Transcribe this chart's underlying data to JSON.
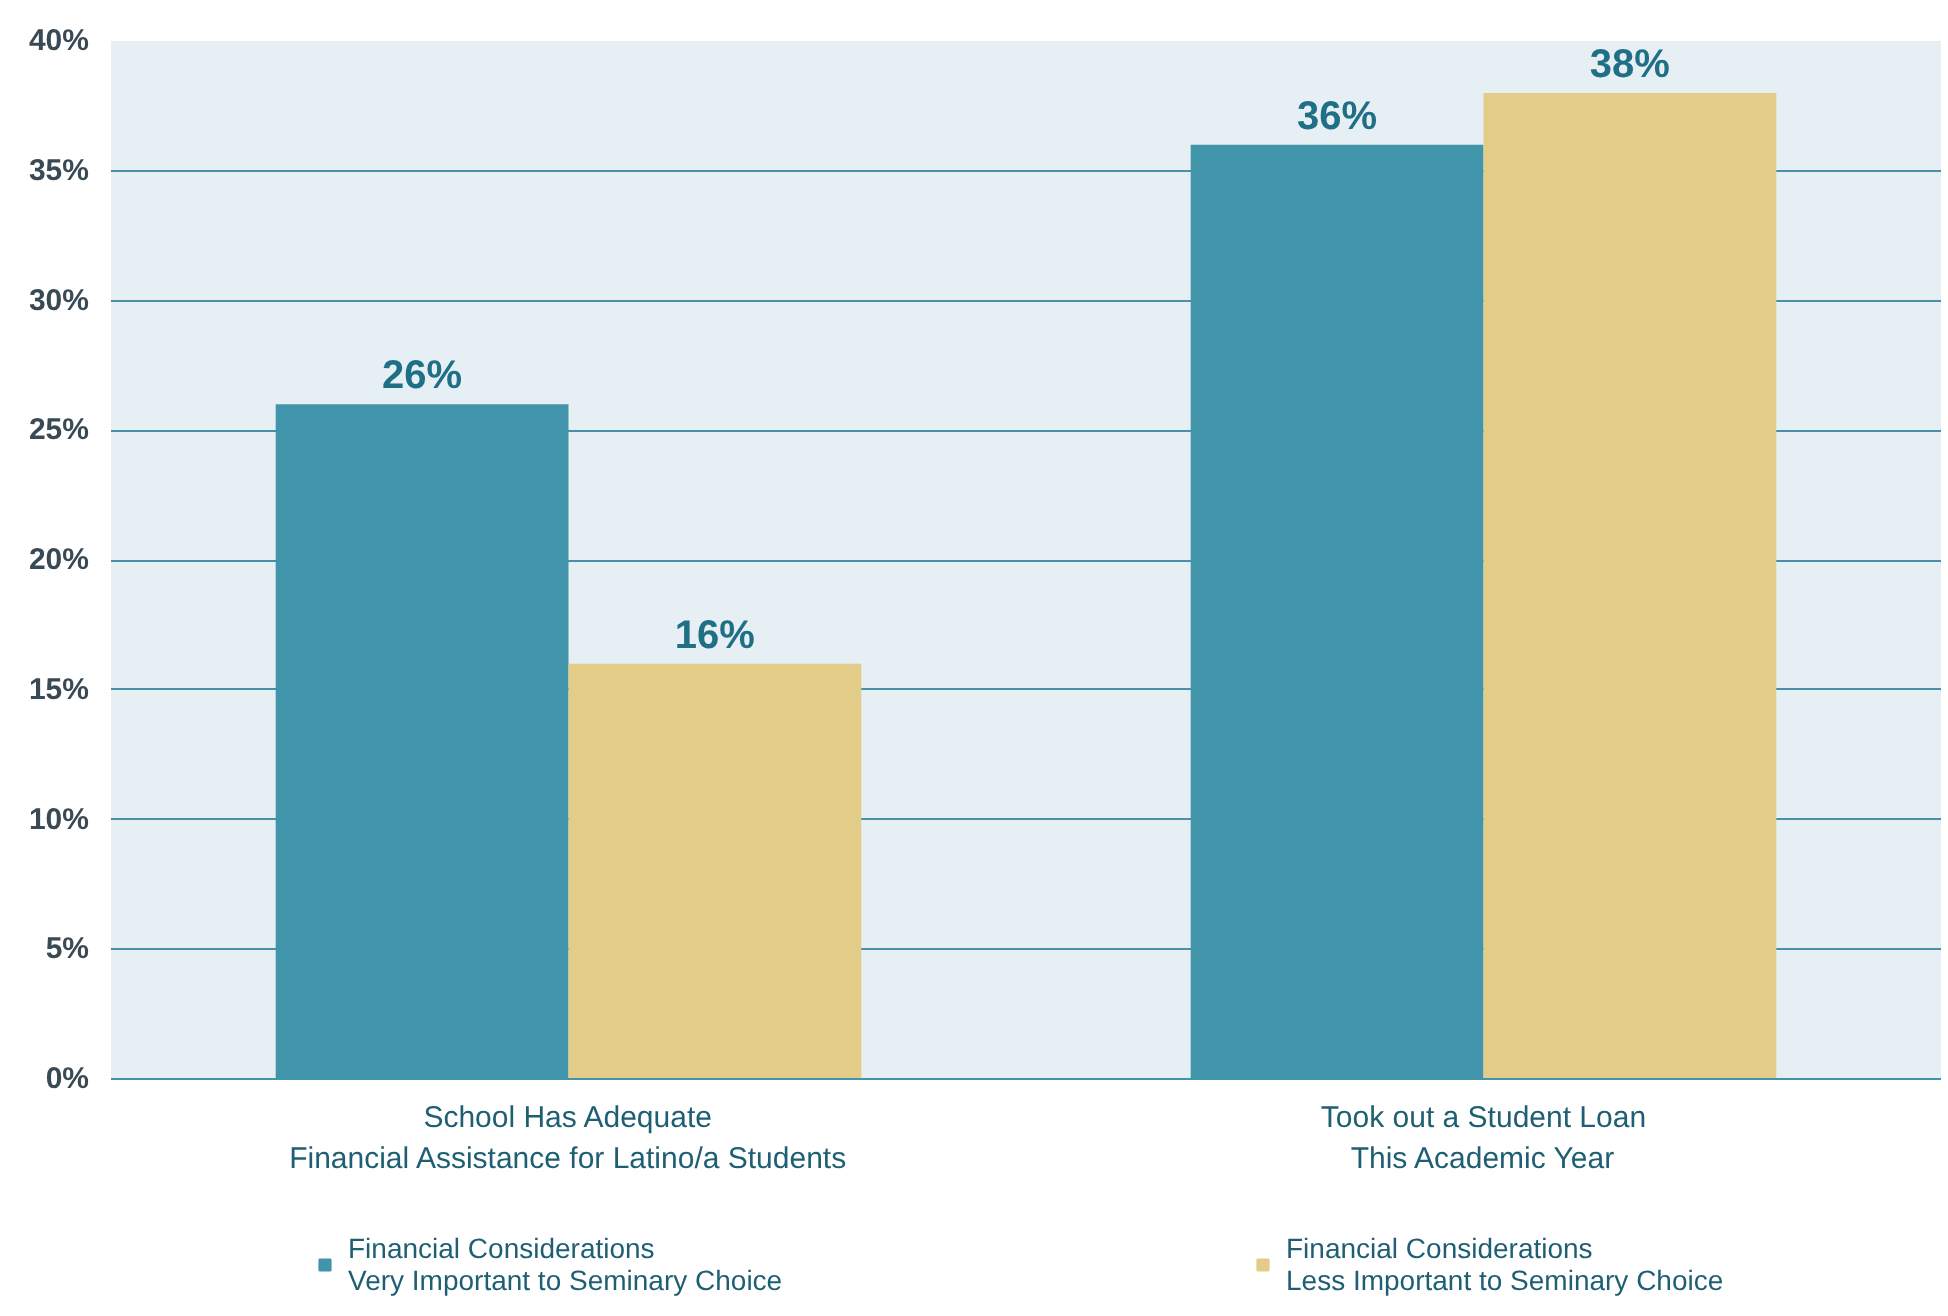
{
  "chart_data": {
    "type": "bar",
    "categories": [
      "School Has Adequate\nFinancial Assistance for Latino/a Students",
      "Took out a Student Loan\nThis Academic Year"
    ],
    "series": [
      {
        "name": "Financial Considerations\nVery Important to Seminary Choice",
        "color": "#4095ab",
        "values": [
          26,
          36
        ],
        "value_labels": [
          "26%",
          "36%"
        ]
      },
      {
        "name": "Financial Considerations\nLess Important to Seminary Choice",
        "color": "#e2cc87",
        "values": [
          16,
          38
        ],
        "value_labels": [
          "16%",
          "38%"
        ]
      }
    ],
    "ylim": [
      0,
      40
    ],
    "yticks": [
      {
        "value": 0,
        "label": "0%"
      },
      {
        "value": 5,
        "label": "5%"
      },
      {
        "value": 10,
        "label": "10%"
      },
      {
        "value": 15,
        "label": "15%"
      },
      {
        "value": 20,
        "label": "20%"
      },
      {
        "value": 25,
        "label": "25%"
      },
      {
        "value": 30,
        "label": "30%"
      },
      {
        "value": 35,
        "label": "35%"
      },
      {
        "value": 40,
        "label": "40%"
      }
    ],
    "grid": "y",
    "legend": "bottom"
  }
}
